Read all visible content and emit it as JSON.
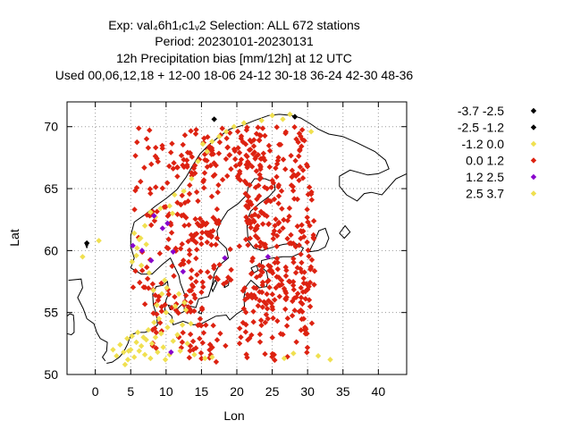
{
  "chart_data": {
    "type": "scatter",
    "title_lines": [
      "Exp: val₄6h1ᵣc1ᵥ2   Selection: ALL    672 stations",
      "Period: 20230101-20230131",
      "12h Precipitation bias [mm/12h] at  12 UTC",
      "Used  00,06,12,18  + 12-00 18-06 24-12 30-18 36-24 42-30 48-36"
    ],
    "xlabel": "Lon",
    "ylabel": "Lat",
    "xlim": [
      -4,
      44
    ],
    "ylim": [
      50,
      72
    ],
    "xticks": [
      0,
      5,
      10,
      15,
      20,
      25,
      30,
      35,
      40
    ],
    "yticks": [
      50,
      55,
      60,
      65,
      70
    ],
    "grid": true,
    "legend_position": "right",
    "legend": [
      {
        "label": "-3.7 -2.5",
        "color": "#000000"
      },
      {
        "label": "-2.5 -1.2",
        "color": "#000000"
      },
      {
        "label": "-1.2 0.0",
        "color": "#f0e050"
      },
      {
        "label": "0.0 1.2",
        "color": "#dd2211"
      },
      {
        "label": "1.2 2.5",
        "color": "#8800cc"
      },
      {
        "label": "2.5 3.7",
        "color": "#f0e050"
      }
    ],
    "series": [
      {
        "bin": "-2.5 -1.2",
        "points": [
          [
            -1.2,
            60.6
          ],
          [
            16.8,
            70.6
          ],
          [
            28.2,
            70.8
          ]
        ]
      },
      {
        "bin": "-1.2 0.0",
        "points": [
          [
            -1.8,
            59.5
          ],
          [
            0.5,
            60.8
          ],
          [
            2.5,
            52.0
          ],
          [
            3.0,
            51.5
          ],
          [
            3.5,
            52.4
          ],
          [
            4.0,
            51.8
          ],
          [
            4.5,
            52.9
          ],
          [
            4.6,
            51.2
          ],
          [
            5.0,
            52.0
          ],
          [
            5.2,
            53.1
          ],
          [
            5.5,
            51.4
          ],
          [
            5.8,
            52.6
          ],
          [
            6.0,
            53.4
          ],
          [
            6.2,
            51.9
          ],
          [
            6.5,
            52.3
          ],
          [
            6.8,
            53.0
          ],
          [
            7.0,
            51.6
          ],
          [
            7.2,
            52.8
          ],
          [
            7.5,
            53.6
          ],
          [
            7.8,
            51.3
          ],
          [
            8.0,
            52.5
          ],
          [
            8.3,
            54.2
          ],
          [
            8.5,
            53.0
          ],
          [
            8.8,
            51.8
          ],
          [
            9.0,
            54.5
          ],
          [
            9.3,
            53.3
          ],
          [
            9.6,
            52.2
          ],
          [
            10.0,
            55.0
          ],
          [
            10.2,
            53.8
          ],
          [
            10.5,
            51.6
          ],
          [
            10.8,
            54.3
          ],
          [
            11.0,
            52.7
          ],
          [
            11.3,
            55.5
          ],
          [
            11.6,
            53.2
          ],
          [
            12.0,
            51.9
          ],
          [
            12.3,
            54.0
          ],
          [
            12.6,
            55.8
          ],
          [
            13.0,
            52.5
          ],
          [
            8.7,
            55.6
          ],
          [
            9.4,
            56.5
          ],
          [
            10.1,
            57.0
          ],
          [
            8.2,
            56.8
          ],
          [
            9.8,
            57.6
          ],
          [
            7.6,
            58.2
          ],
          [
            6.5,
            58.8
          ],
          [
            5.8,
            59.6
          ],
          [
            6.2,
            60.9
          ],
          [
            5.5,
            61.4
          ],
          [
            7.0,
            62.0
          ],
          [
            8.5,
            62.7
          ],
          [
            9.2,
            63.4
          ],
          [
            10.5,
            63.6
          ],
          [
            12.5,
            64.8
          ],
          [
            13.6,
            65.8
          ],
          [
            14.5,
            67.2
          ],
          [
            15.8,
            68.0
          ],
          [
            16.5,
            68.8
          ],
          [
            17.5,
            69.2
          ],
          [
            18.5,
            69.6
          ],
          [
            19.6,
            70.0
          ],
          [
            21.0,
            70.3
          ],
          [
            23.5,
            70.5
          ],
          [
            25.0,
            70.9
          ],
          [
            26.5,
            70.6
          ],
          [
            27.5,
            71.0
          ],
          [
            7.8,
            63.1
          ],
          [
            11.2,
            64.5
          ],
          [
            15.2,
            68.6
          ],
          [
            30.5,
            69.6
          ],
          [
            26.7,
            51.3
          ],
          [
            28.0,
            51.7
          ],
          [
            33.2,
            51.2
          ],
          [
            31.5,
            51.5
          ],
          [
            14.0,
            51.6
          ],
          [
            15.5,
            51.3
          ],
          [
            16.5,
            51.4
          ],
          [
            5.9,
            60.2
          ],
          [
            5.2,
            59.1
          ],
          [
            7.2,
            60.5
          ],
          [
            12.8,
            55.2
          ],
          [
            11.8,
            56.5
          ],
          [
            13.5,
            54.1
          ],
          [
            9.9,
            51.2
          ],
          [
            4.2,
            50.8
          ]
        ]
      },
      {
        "bin": "1.2 2.5",
        "points": [
          [
            5.3,
            60.4
          ],
          [
            6.6,
            60.0
          ],
          [
            7.9,
            59.2
          ],
          [
            10.2,
            62.2
          ],
          [
            9.5,
            61.8
          ],
          [
            8.3,
            62.8
          ],
          [
            12.4,
            58.3
          ],
          [
            10.7,
            51.8
          ],
          [
            24.4,
            59.5
          ],
          [
            18.3,
            59.4
          ],
          [
            11.0,
            59.9
          ]
        ]
      },
      {
        "bin": "2.5 3.7",
        "points": [
          [
            6.4,
            61.0
          ],
          [
            10.9,
            63.0
          ],
          [
            4.7,
            51.9
          ]
        ]
      }
    ],
    "red_clusters": [
      {
        "lon": [
          5,
          31
        ],
        "lat": [
          55,
          70
        ]
      },
      {
        "lon": [
          8,
          16
        ],
        "lat": [
          52,
          57
        ]
      },
      {
        "lon": [
          13,
          31
        ],
        "lat": [
          51,
          59
        ]
      },
      {
        "lon": [
          20,
          31
        ],
        "lat": [
          56,
          70
        ]
      },
      {
        "lon": [
          12,
          24
        ],
        "lat": [
          60,
          69
        ]
      }
    ]
  }
}
